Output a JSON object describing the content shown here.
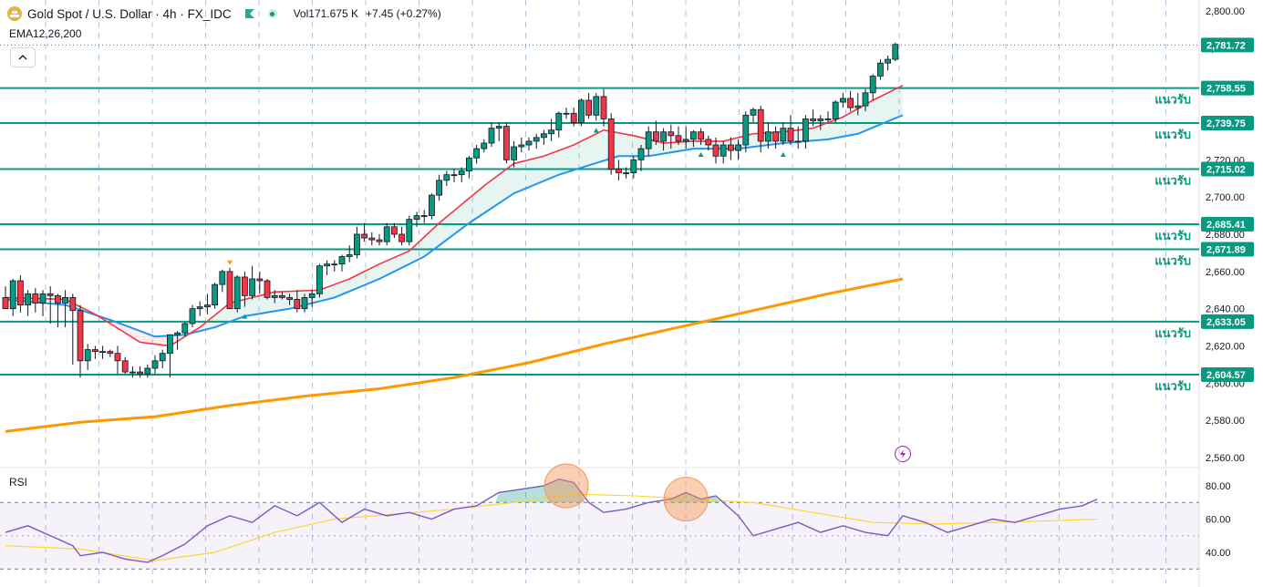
{
  "header": {
    "title": "Gold Spot / U.S. Dollar · 4h · FX_IDC",
    "volume_label": "Vol",
    "volume_value": "171.675 K",
    "change": "+7.45 (+0.27%)"
  },
  "indicators": {
    "ema_label": "EMA12,26,200",
    "rsi_label": "RSI"
  },
  "colors": {
    "up": "#089981",
    "down": "#f23645",
    "ema_fast": "#f23645",
    "ema_mid": "#2196f3",
    "ema_slow": "#ff9800",
    "support_line": "#089981",
    "rsi_line": "#7e57c2",
    "rsi_ma": "#fdd835",
    "highlight": "#f7b38a"
  },
  "chart_data": {
    "type": "candlestick",
    "price_axis": {
      "ticks": [
        "2,800.00",
        "2,780.00",
        "2,760.00",
        "2,740.00",
        "2,720.00",
        "2,700.00",
        "2,680.00",
        "2,660.00",
        "2,640.00",
        "2,620.00",
        "2,600.00",
        "2,580.00",
        "2,560.00"
      ],
      "range": [
        2555,
        2805
      ]
    },
    "current_price": 2781.72,
    "current_price_label": "2,781.72",
    "support_levels": [
      {
        "value": 2758.55,
        "label": "2,758.55",
        "note": "แนวรับ"
      },
      {
        "value": 2739.75,
        "label": "2,739.75",
        "note": "แนวรับ"
      },
      {
        "value": 2715.02,
        "label": "2,715.02",
        "note": "แนวรับ"
      },
      {
        "value": 2685.41,
        "label": "2,685.41",
        "note": "แนวรับ"
      },
      {
        "value": 2671.89,
        "label": "2,671.89",
        "note": "แนวรับ"
      },
      {
        "value": 2633.05,
        "label": "2,633.05",
        "note": "แนวรับ"
      },
      {
        "value": 2604.57,
        "label": "2,604.57",
        "note": "แนวรับ"
      }
    ],
    "candles": [
      [
        2646,
        2652,
        2640,
        2640
      ],
      [
        2640,
        2656,
        2636,
        2655
      ],
      [
        2655,
        2658,
        2638,
        2642
      ],
      [
        2642,
        2650,
        2636,
        2648
      ],
      [
        2648,
        2651,
        2638,
        2643
      ],
      [
        2643,
        2650,
        2636,
        2648
      ],
      [
        2648,
        2652,
        2632,
        2647
      ],
      [
        2647,
        2648,
        2630,
        2643
      ],
      [
        2643,
        2650,
        2630,
        2646
      ],
      [
        2646,
        2648,
        2610,
        2639
      ],
      [
        2639,
        2642,
        2603,
        2612
      ],
      [
        2612,
        2621,
        2607,
        2618
      ],
      [
        2618,
        2620,
        2613,
        2617
      ],
      [
        2617,
        2620,
        2613,
        2617
      ],
      [
        2617,
        2618,
        2614,
        2616
      ],
      [
        2616,
        2620,
        2605,
        2612
      ],
      [
        2612,
        2614,
        2605,
        2606
      ],
      [
        2606,
        2609,
        2603,
        2606
      ],
      [
        2606,
        2609,
        2603,
        2605
      ],
      [
        2605,
        2610,
        2603,
        2608
      ],
      [
        2608,
        2615,
        2605,
        2612
      ],
      [
        2612,
        2618,
        2608,
        2616
      ],
      [
        2616,
        2626,
        2603,
        2626
      ],
      [
        2626,
        2628,
        2618,
        2627
      ],
      [
        2627,
        2633,
        2625,
        2632
      ],
      [
        2632,
        2642,
        2630,
        2640
      ],
      [
        2640,
        2644,
        2636,
        2641
      ],
      [
        2641,
        2648,
        2637,
        2642
      ],
      [
        2642,
        2654,
        2640,
        2653
      ],
      [
        2653,
        2661,
        2649,
        2660
      ],
      [
        2660,
        2662,
        2640,
        2640
      ],
      [
        2640,
        2658,
        2638,
        2657
      ],
      [
        2657,
        2660,
        2641,
        2647
      ],
      [
        2647,
        2663,
        2645,
        2656
      ],
      [
        2656,
        2660,
        2648,
        2655
      ],
      [
        2655,
        2656,
        2645,
        2646
      ],
      [
        2646,
        2650,
        2643,
        2647
      ],
      [
        2647,
        2649,
        2645,
        2646
      ],
      [
        2646,
        2648,
        2642,
        2645
      ],
      [
        2645,
        2650,
        2638,
        2640
      ],
      [
        2640,
        2648,
        2638,
        2646
      ],
      [
        2646,
        2650,
        2641,
        2648
      ],
      [
        2648,
        2664,
        2646,
        2663
      ],
      [
        2663,
        2666,
        2658,
        2664
      ],
      [
        2664,
        2666,
        2660,
        2664
      ],
      [
        2664,
        2669,
        2660,
        2668
      ],
      [
        2668,
        2674,
        2665,
        2669
      ],
      [
        2669,
        2684,
        2667,
        2680
      ],
      [
        2680,
        2686,
        2676,
        2678
      ],
      [
        2678,
        2681,
        2674,
        2677
      ],
      [
        2677,
        2680,
        2674,
        2676
      ],
      [
        2676,
        2686,
        2674,
        2684
      ],
      [
        2684,
        2686,
        2678,
        2680
      ],
      [
        2680,
        2684,
        2674,
        2676
      ],
      [
        2676,
        2690,
        2674,
        2688
      ],
      [
        2688,
        2692,
        2684,
        2690
      ],
      [
        2690,
        2693,
        2686,
        2690
      ],
      [
        2690,
        2702,
        2688,
        2701
      ],
      [
        2701,
        2712,
        2698,
        2709
      ],
      [
        2709,
        2714,
        2706,
        2712
      ],
      [
        2712,
        2715,
        2708,
        2712
      ],
      [
        2712,
        2716,
        2708,
        2714
      ],
      [
        2714,
        2722,
        2710,
        2721
      ],
      [
        2721,
        2728,
        2718,
        2726
      ],
      [
        2726,
        2731,
        2724,
        2729
      ],
      [
        2729,
        2740,
        2727,
        2737
      ],
      [
        2737,
        2740,
        2730,
        2738
      ],
      [
        2738,
        2740,
        2718,
        2720
      ],
      [
        2720,
        2730,
        2716,
        2727
      ],
      [
        2727,
        2732,
        2724,
        2728
      ],
      [
        2728,
        2732,
        2725,
        2730
      ],
      [
        2730,
        2734,
        2726,
        2732
      ],
      [
        2732,
        2736,
        2728,
        2734
      ],
      [
        2734,
        2742,
        2730,
        2736
      ],
      [
        2736,
        2746,
        2732,
        2745
      ],
      [
        2745,
        2748,
        2742,
        2745
      ],
      [
        2745,
        2748,
        2738,
        2740
      ],
      [
        2740,
        2753,
        2738,
        2752
      ],
      [
        2752,
        2756,
        2742,
        2744
      ],
      [
        2744,
        2756,
        2741,
        2754
      ],
      [
        2754,
        2758,
        2738,
        2742
      ],
      [
        2742,
        2745,
        2712,
        2715
      ],
      [
        2715,
        2720,
        2709,
        2713
      ],
      [
        2713,
        2716,
        2710,
        2713
      ],
      [
        2713,
        2722,
        2710,
        2720
      ],
      [
        2720,
        2728,
        2714,
        2726
      ],
      [
        2726,
        2738,
        2722,
        2735
      ],
      [
        2735,
        2741,
        2728,
        2730
      ],
      [
        2730,
        2737,
        2725,
        2735
      ],
      [
        2735,
        2739,
        2726,
        2733
      ],
      [
        2733,
        2738,
        2728,
        2730
      ],
      [
        2730,
        2738,
        2726,
        2731
      ],
      [
        2731,
        2736,
        2727,
        2735
      ],
      [
        2735,
        2737,
        2728,
        2731
      ],
      [
        2731,
        2733,
        2725,
        2728
      ],
      [
        2728,
        2732,
        2718,
        2722
      ],
      [
        2722,
        2730,
        2718,
        2728
      ],
      [
        2728,
        2732,
        2720,
        2725
      ],
      [
        2725,
        2731,
        2720,
        2728
      ],
      [
        2728,
        2746,
        2724,
        2744
      ],
      [
        2744,
        2748,
        2740,
        2747
      ],
      [
        2747,
        2749,
        2724,
        2730
      ],
      [
        2730,
        2740,
        2726,
        2735
      ],
      [
        2735,
        2738,
        2726,
        2730
      ],
      [
        2730,
        2740,
        2728,
        2737
      ],
      [
        2737,
        2744,
        2728,
        2730
      ],
      [
        2730,
        2738,
        2726,
        2730
      ],
      [
        2730,
        2744,
        2726,
        2742
      ],
      [
        2742,
        2747,
        2738,
        2741
      ],
      [
        2741,
        2744,
        2736,
        2742
      ],
      [
        2742,
        2746,
        2740,
        2742
      ],
      [
        2742,
        2752,
        2740,
        2751
      ],
      [
        2751,
        2756,
        2748,
        2753
      ],
      [
        2753,
        2757,
        2746,
        2748
      ],
      [
        2748,
        2756,
        2744,
        2749
      ],
      [
        2749,
        2758,
        2746,
        2756
      ],
      [
        2756,
        2766,
        2752,
        2765
      ],
      [
        2765,
        2774,
        2763,
        2772
      ],
      [
        2772,
        2776,
        2768,
        2774
      ],
      [
        2774,
        2783,
        2773,
        2782
      ]
    ],
    "ema12": [
      [
        0,
        2646
      ],
      [
        8,
        2645
      ],
      [
        12,
        2637
      ],
      [
        18,
        2622
      ],
      [
        22,
        2620
      ],
      [
        26,
        2630
      ],
      [
        30,
        2643
      ],
      [
        36,
        2649
      ],
      [
        42,
        2650
      ],
      [
        46,
        2656
      ],
      [
        50,
        2664
      ],
      [
        54,
        2671
      ],
      [
        58,
        2686
      ],
      [
        64,
        2706
      ],
      [
        68,
        2718
      ],
      [
        72,
        2722
      ],
      [
        76,
        2728
      ],
      [
        80,
        2736
      ],
      [
        84,
        2733
      ],
      [
        88,
        2729
      ],
      [
        92,
        2730
      ],
      [
        96,
        2730
      ],
      [
        100,
        2734
      ],
      [
        104,
        2735
      ],
      [
        108,
        2737
      ],
      [
        112,
        2743
      ],
      [
        116,
        2752
      ],
      [
        120,
        2760
      ]
    ],
    "ema26": [
      [
        0,
        2645
      ],
      [
        8,
        2642
      ],
      [
        14,
        2634
      ],
      [
        20,
        2625
      ],
      [
        24,
        2626
      ],
      [
        28,
        2630
      ],
      [
        32,
        2636
      ],
      [
        38,
        2640
      ],
      [
        44,
        2646
      ],
      [
        50,
        2656
      ],
      [
        56,
        2668
      ],
      [
        62,
        2686
      ],
      [
        68,
        2702
      ],
      [
        74,
        2712
      ],
      [
        78,
        2717
      ],
      [
        82,
        2722
      ],
      [
        86,
        2722
      ],
      [
        92,
        2726
      ],
      [
        98,
        2726
      ],
      [
        104,
        2729
      ],
      [
        110,
        2731
      ],
      [
        114,
        2734
      ],
      [
        120,
        2744
      ]
    ],
    "ema200": [
      [
        0,
        2574
      ],
      [
        10,
        2579
      ],
      [
        20,
        2582
      ],
      [
        30,
        2588
      ],
      [
        40,
        2593
      ],
      [
        50,
        2597
      ],
      [
        60,
        2603
      ],
      [
        70,
        2611
      ],
      [
        80,
        2621
      ],
      [
        90,
        2630
      ],
      [
        100,
        2639
      ],
      [
        110,
        2648
      ],
      [
        120,
        2656
      ]
    ],
    "signals": [
      {
        "i": 30,
        "type": "sell"
      },
      {
        "i": 32,
        "type": "buy"
      },
      {
        "i": 79,
        "type": "buy"
      },
      {
        "i": 93,
        "type": "buy"
      },
      {
        "i": 104,
        "type": "buy"
      }
    ],
    "rsi": {
      "ticks": [
        "80.00",
        "60.00",
        "40.00"
      ],
      "range": [
        25,
        90
      ],
      "upper_band": 70,
      "lower_band": 30,
      "line": [
        [
          0,
          52
        ],
        [
          3,
          56
        ],
        [
          6,
          50
        ],
        [
          9,
          44
        ],
        [
          10,
          38
        ],
        [
          13,
          40
        ],
        [
          16,
          36
        ],
        [
          19,
          34
        ],
        [
          21,
          38
        ],
        [
          24,
          45
        ],
        [
          27,
          56
        ],
        [
          30,
          62
        ],
        [
          33,
          58
        ],
        [
          36,
          68
        ],
        [
          39,
          62
        ],
        [
          42,
          70
        ],
        [
          45,
          58
        ],
        [
          48,
          66
        ],
        [
          51,
          62
        ],
        [
          54,
          64
        ],
        [
          57,
          60
        ],
        [
          60,
          66
        ],
        [
          63,
          68
        ],
        [
          66,
          76
        ],
        [
          69,
          78
        ],
        [
          72,
          80
        ],
        [
          74,
          84
        ],
        [
          76,
          82
        ],
        [
          77,
          76
        ],
        [
          78,
          70
        ],
        [
          80,
          64
        ],
        [
          83,
          66
        ],
        [
          86,
          70
        ],
        [
          89,
          72
        ],
        [
          91,
          76
        ],
        [
          93,
          72
        ],
        [
          95,
          74
        ],
        [
          98,
          62
        ],
        [
          100,
          50
        ],
        [
          103,
          54
        ],
        [
          106,
          58
        ],
        [
          109,
          52
        ],
        [
          112,
          56
        ],
        [
          115,
          52
        ],
        [
          118,
          50
        ],
        [
          120,
          62
        ],
        [
          123,
          58
        ],
        [
          126,
          52
        ],
        [
          129,
          56
        ],
        [
          132,
          60
        ],
        [
          135,
          58
        ],
        [
          138,
          62
        ],
        [
          141,
          66
        ],
        [
          144,
          68
        ],
        [
          146,
          72
        ],
        [
          120,
          72
        ]
      ],
      "ma": [
        [
          0,
          44
        ],
        [
          10,
          42
        ],
        [
          20,
          35
        ],
        [
          28,
          40
        ],
        [
          36,
          52
        ],
        [
          44,
          60
        ],
        [
          52,
          63
        ],
        [
          60,
          66
        ],
        [
          68,
          70
        ],
        [
          76,
          75
        ],
        [
          84,
          74
        ],
        [
          92,
          72
        ],
        [
          100,
          70
        ],
        [
          108,
          64
        ],
        [
          116,
          58
        ],
        [
          124,
          57
        ],
        [
          132,
          58
        ],
        [
          140,
          59
        ],
        [
          146,
          60
        ]
      ],
      "highlights": [
        {
          "i": 75,
          "v": 80
        },
        {
          "i": 91,
          "v": 72
        }
      ]
    }
  }
}
